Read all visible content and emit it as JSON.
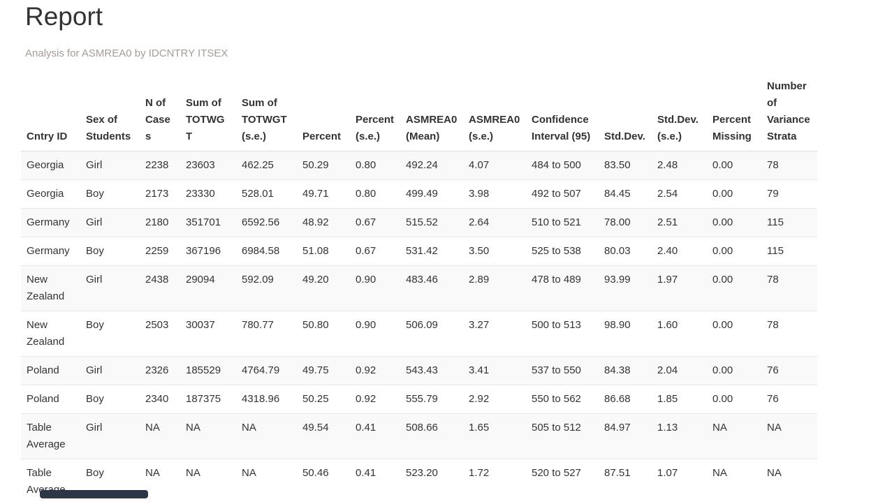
{
  "page": {
    "title": "Report",
    "subtitle": "Analysis for ASMREA0 by IDCNTRY ITSEX"
  },
  "table": {
    "columns": [
      "Cntry ID",
      "Sex of Students",
      "N of Cases",
      "Sum of TOTWGT",
      "Sum of TOTWGT (s.e.)",
      "Percent",
      "Percent (s.e.)",
      "ASMREA0 (Mean)",
      "ASMREA0 (s.e.)",
      "Confidence Interval (95)",
      "Std.Dev.",
      "Std.Dev. (s.e.)",
      "Percent Missing",
      "Number of Variance Strata"
    ],
    "rows": [
      [
        "Georgia",
        "Girl",
        "2238",
        "23603",
        "462.25",
        "50.29",
        "0.80",
        "492.24",
        "4.07",
        "484 to 500",
        "83.50",
        "2.48",
        "0.00",
        "78"
      ],
      [
        "Georgia",
        "Boy",
        "2173",
        "23330",
        "528.01",
        "49.71",
        "0.80",
        "499.49",
        "3.98",
        "492 to 507",
        "84.45",
        "2.54",
        "0.00",
        "79"
      ],
      [
        "Germany",
        "Girl",
        "2180",
        "351701",
        "6592.56",
        "48.92",
        "0.67",
        "515.52",
        "2.64",
        "510 to 521",
        "78.00",
        "2.51",
        "0.00",
        "115"
      ],
      [
        "Germany",
        "Boy",
        "2259",
        "367196",
        "6984.58",
        "51.08",
        "0.67",
        "531.42",
        "3.50",
        "525 to 538",
        "80.03",
        "2.40",
        "0.00",
        "115"
      ],
      [
        "New Zealand",
        "Girl",
        "2438",
        "29094",
        "592.09",
        "49.20",
        "0.90",
        "483.46",
        "2.89",
        "478 to 489",
        "93.99",
        "1.97",
        "0.00",
        "78"
      ],
      [
        "New Zealand",
        "Boy",
        "2503",
        "30037",
        "780.77",
        "50.80",
        "0.90",
        "506.09",
        "3.27",
        "500 to 513",
        "98.90",
        "1.60",
        "0.00",
        "78"
      ],
      [
        "Poland",
        "Girl",
        "2326",
        "185529",
        "4764.79",
        "49.75",
        "0.92",
        "543.43",
        "3.41",
        "537 to 550",
        "84.38",
        "2.04",
        "0.00",
        "76"
      ],
      [
        "Poland",
        "Boy",
        "2340",
        "187375",
        "4318.96",
        "50.25",
        "0.92",
        "555.79",
        "2.92",
        "550 to 562",
        "86.68",
        "1.85",
        "0.00",
        "76"
      ],
      [
        "Table Average",
        "Girl",
        "NA",
        "NA",
        "NA",
        "49.54",
        "0.41",
        "508.66",
        "1.65",
        "505 to 512",
        "84.97",
        "1.13",
        "NA",
        "NA"
      ],
      [
        "Table Average",
        "Boy",
        "NA",
        "NA",
        "NA",
        "50.46",
        "0.41",
        "523.20",
        "1.72",
        "520 to 527",
        "87.51",
        "1.07",
        "NA",
        "NA"
      ]
    ]
  },
  "colors": {
    "title_text": "#333333",
    "subtitle_text": "#a39c96",
    "row_stripe": "#f9f9f9",
    "row_border": "#e7e7e7",
    "header_border": "#dddddd",
    "bottom_bar": "#2b3647"
  }
}
